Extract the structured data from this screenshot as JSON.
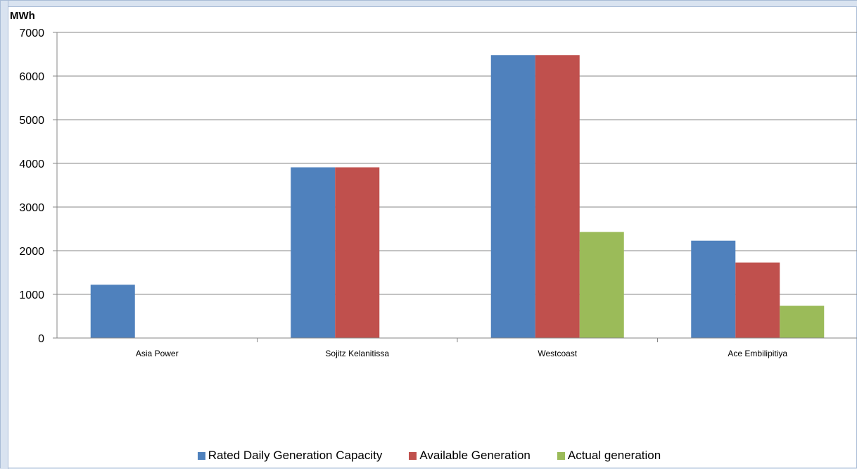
{
  "chart_data": {
    "type": "bar",
    "unit_label": "MWh",
    "categories": [
      "Asia Power",
      "Sojitz Kelanitissa",
      "Westcoast",
      "Ace Embilipitiya"
    ],
    "series": [
      {
        "name": "Rated Daily Generation Capacity",
        "color": "#4f81bd",
        "values": [
          1220,
          3910,
          6480,
          2230
        ]
      },
      {
        "name": "Available Generation",
        "color": "#c0504d",
        "values": [
          0,
          3910,
          6480,
          1730
        ]
      },
      {
        "name": "Actual generation",
        "color": "#9bbb59",
        "values": [
          0,
          0,
          2430,
          740
        ]
      }
    ],
    "ylim": [
      0,
      7000
    ],
    "yticks": [
      0,
      1000,
      2000,
      3000,
      4000,
      5000,
      6000,
      7000
    ],
    "grid": true,
    "legend_position": "bottom"
  }
}
